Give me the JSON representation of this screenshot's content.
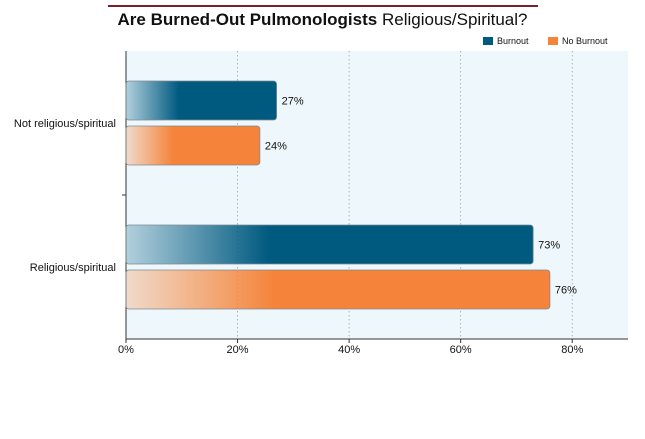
{
  "chart_data": {
    "type": "bar",
    "orientation": "horizontal",
    "title_bold": "Are Burned-Out Pulmonologists",
    "title_light": "Religious/Spiritual?",
    "categories": [
      "Not religious/spiritual",
      "Religious/spiritual"
    ],
    "series": [
      {
        "name": "Burnout",
        "values": [
          27,
          73
        ],
        "color": "#005a80",
        "labels": [
          "27%",
          "73%"
        ]
      },
      {
        "name": "No Burnout",
        "values": [
          24,
          76
        ],
        "color": "#f5843a",
        "labels": [
          "24%",
          "76%"
        ]
      }
    ],
    "xlim": [
      0,
      90
    ],
    "xticks": [
      0,
      20,
      40,
      60,
      80
    ],
    "xtick_labels": [
      "0%",
      "20%",
      "40%",
      "60%",
      "80%"
    ],
    "grid": "vertical dotted",
    "legend": "top-right",
    "plot_background": "#eef7fc"
  }
}
